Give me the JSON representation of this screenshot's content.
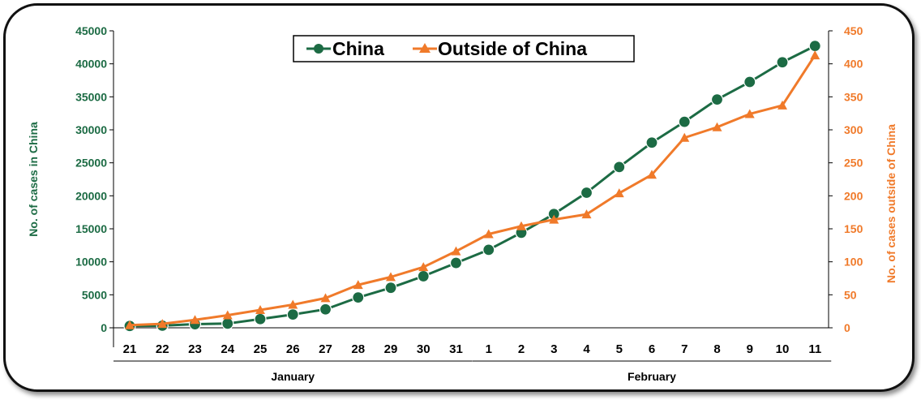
{
  "chart_data": {
    "type": "line",
    "categories": [
      "21",
      "22",
      "23",
      "24",
      "25",
      "26",
      "27",
      "28",
      "29",
      "30",
      "31",
      "1",
      "2",
      "3",
      "4",
      "5",
      "6",
      "7",
      "8",
      "9",
      "10",
      "11"
    ],
    "months": [
      {
        "label": "January",
        "from_index": 0,
        "to_index": 10
      },
      {
        "label": "February",
        "from_index": 11,
        "to_index": 21
      }
    ],
    "ylabel_left": "No. of cases in China",
    "ylabel_right": "No. of cases outside of China",
    "ylim_left": [
      0,
      45000
    ],
    "yticks_left": [
      0,
      5000,
      10000,
      15000,
      20000,
      25000,
      30000,
      35000,
      40000,
      45000
    ],
    "ylim_right": [
      0,
      450
    ],
    "yticks_right": [
      0,
      50,
      100,
      150,
      200,
      250,
      300,
      350,
      400,
      450
    ],
    "legend_position": "top-center",
    "grid": false,
    "series": [
      {
        "name": "China",
        "axis": "left",
        "color": "#1c6b44",
        "marker": "circle",
        "values": [
          278,
          326,
          547,
          639,
          1320,
          2014,
          2798,
          4593,
          6065,
          7818,
          9826,
          11821,
          14411,
          17238,
          20471,
          24363,
          28060,
          31211,
          34598,
          37251,
          40235,
          42708
        ]
      },
      {
        "name": "Outside of China",
        "axis": "right",
        "color": "#f07a2a",
        "marker": "triangle",
        "values": [
          4,
          6,
          12,
          19,
          27,
          35,
          45,
          65,
          77,
          92,
          116,
          142,
          154,
          164,
          172,
          204,
          232,
          288,
          304,
          324,
          337,
          413
        ]
      }
    ]
  }
}
